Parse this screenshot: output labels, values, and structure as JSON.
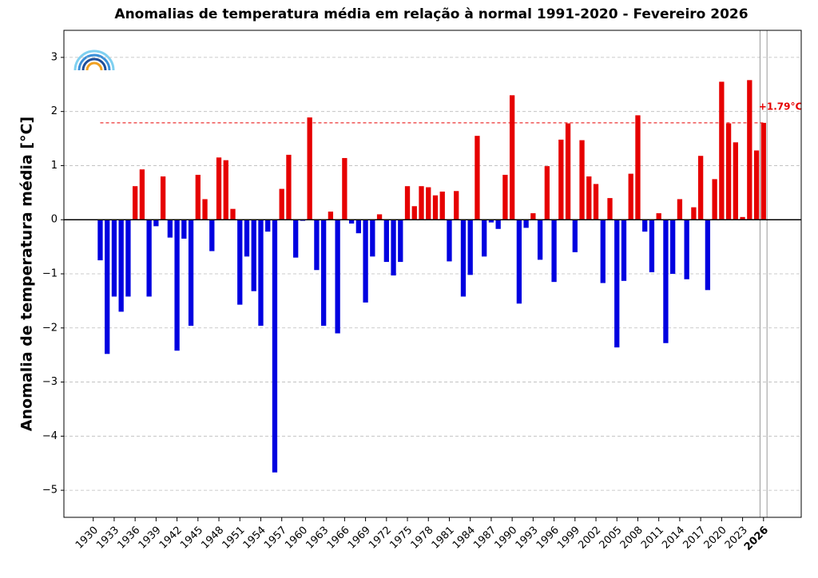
{
  "chart_data": {
    "type": "bar",
    "title": "Anomalias de temperatura média em relação à normal 1991-2020 - Fevereiro 2026",
    "y_label": "Anomalia de temperatura média [°C]",
    "x": [
      1931,
      1932,
      1933,
      1934,
      1935,
      1936,
      1937,
      1938,
      1939,
      1940,
      1941,
      1942,
      1943,
      1944,
      1945,
      1946,
      1947,
      1948,
      1949,
      1950,
      1951,
      1952,
      1953,
      1954,
      1955,
      1956,
      1957,
      1958,
      1959,
      1960,
      1961,
      1962,
      1963,
      1964,
      1965,
      1966,
      1967,
      1968,
      1969,
      1970,
      1971,
      1972,
      1973,
      1974,
      1975,
      1976,
      1977,
      1978,
      1979,
      1980,
      1981,
      1982,
      1983,
      1984,
      1985,
      1986,
      1987,
      1988,
      1989,
      1990,
      1991,
      1992,
      1993,
      1994,
      1995,
      1996,
      1997,
      1998,
      1999,
      2000,
      2001,
      2002,
      2003,
      2004,
      2005,
      2006,
      2007,
      2008,
      2009,
      2010,
      2011,
      2012,
      2013,
      2014,
      2015,
      2016,
      2017,
      2018,
      2019,
      2020,
      2021,
      2022,
      2023,
      2024,
      2025,
      2026
    ],
    "values": [
      -0.75,
      -2.48,
      -1.42,
      -1.7,
      -1.42,
      0.62,
      0.93,
      -1.42,
      -0.12,
      0.8,
      -0.33,
      -2.42,
      -0.35,
      -1.96,
      0.83,
      0.38,
      -0.58,
      1.15,
      1.1,
      0.2,
      -1.57,
      -0.68,
      -1.32,
      -1.96,
      -0.22,
      -4.67,
      0.57,
      1.2,
      -0.7,
      -0.02,
      1.89,
      -0.93,
      -1.96,
      0.15,
      -2.1,
      1.14,
      -0.07,
      -0.25,
      -1.53,
      -0.68,
      0.1,
      -0.78,
      -1.03,
      -0.78,
      0.62,
      0.25,
      0.62,
      0.6,
      0.45,
      0.52,
      -0.77,
      0.53,
      -1.42,
      -1.02,
      1.55,
      -0.68,
      -0.05,
      -0.17,
      0.83,
      2.3,
      -1.55,
      -0.15,
      0.12,
      -0.74,
      0.99,
      -1.15,
      1.48,
      1.78,
      -0.6,
      1.47,
      0.8,
      0.66,
      -1.17,
      0.4,
      -2.36,
      -1.13,
      0.85,
      1.93,
      -0.22,
      -0.97,
      0.12,
      -2.28,
      -1.0,
      0.38,
      -1.1,
      0.23,
      1.18,
      -1.3,
      0.75,
      2.55,
      1.78,
      1.43,
      0.05,
      2.58,
      1.28,
      1.79
    ],
    "positive_color": "#e60000",
    "negative_color": "#0000e0",
    "xlim": [
      1925.8,
      2031.4
    ],
    "xticks": [
      1930,
      1933,
      1936,
      1939,
      1942,
      1945,
      1948,
      1951,
      1954,
      1957,
      1960,
      1963,
      1966,
      1969,
      1972,
      1975,
      1978,
      1981,
      1984,
      1987,
      1990,
      1993,
      1996,
      1999,
      2002,
      2005,
      2008,
      2011,
      2014,
      2017,
      2020,
      2023,
      2026
    ],
    "ylim": [
      -5.5,
      3.5
    ],
    "yticks": [
      {
        "value": -5,
        "label": "−5"
      },
      {
        "value": -4,
        "label": "−4"
      },
      {
        "value": -3,
        "label": "−3"
      },
      {
        "value": -2,
        "label": "−2"
      },
      {
        "value": -1,
        "label": "−1"
      },
      0,
      1,
      2,
      3
    ],
    "grid": true,
    "highlight_year": 2026,
    "reference": {
      "value": 1.79,
      "label": "+1.79°C",
      "color": "#e60000"
    }
  }
}
